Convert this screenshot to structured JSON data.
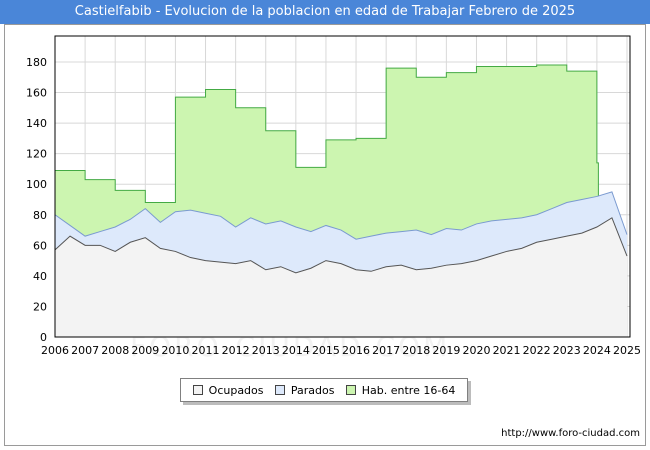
{
  "chart_data": {
    "type": "area",
    "title": "Castielfabib - Evolucion de la poblacion en edad de Trabajar Febrero de 2025",
    "xlabel": "",
    "ylabel": "",
    "x_ticks": [
      "2006",
      "2007",
      "2008",
      "2009",
      "2010",
      "2011",
      "2012",
      "2013",
      "2014",
      "2015",
      "2016",
      "2017",
      "2018",
      "2019",
      "2020",
      "2021",
      "2022",
      "2023",
      "2024",
      "2025"
    ],
    "y_ticks": [
      0,
      20,
      40,
      60,
      80,
      100,
      120,
      140,
      160,
      180
    ],
    "ylim": [
      0,
      197
    ],
    "xlim": [
      2006,
      2025.1
    ],
    "grid": true,
    "legend_position": "bottom",
    "series": [
      {
        "name": "Hab. entre 16-64",
        "color": "#ccf5b0",
        "line_color": "#44aa44",
        "x": [
          2006,
          2007,
          2008,
          2009,
          2010,
          2011,
          2012,
          2013,
          2014,
          2015,
          2016,
          2017,
          2018,
          2019,
          2020,
          2021,
          2022,
          2023,
          2024
        ],
        "values": [
          109,
          103,
          96,
          88,
          157,
          162,
          150,
          135,
          111,
          129,
          130,
          176,
          170,
          173,
          177,
          177,
          178,
          174,
          114
        ]
      },
      {
        "name": "Parados",
        "color": "#dde9fb",
        "line_color": "#7a9ad0",
        "x": [
          2006,
          2006.5,
          2007,
          2007.5,
          2008,
          2008.5,
          2009,
          2009.5,
          2010,
          2010.5,
          2011,
          2011.5,
          2012,
          2012.5,
          2013,
          2013.5,
          2014,
          2014.5,
          2015,
          2015.5,
          2016,
          2016.5,
          2017,
          2017.5,
          2018,
          2018.5,
          2019,
          2019.5,
          2020,
          2020.5,
          2021,
          2021.5,
          2022,
          2022.5,
          2023,
          2023.5,
          2024,
          2024.5,
          2025
        ],
        "values": [
          80,
          73,
          66,
          69,
          72,
          77,
          84,
          75,
          82,
          83,
          81,
          79,
          72,
          78,
          74,
          76,
          72,
          69,
          73,
          70,
          64,
          66,
          68,
          69,
          70,
          67,
          71,
          70,
          74,
          76,
          77,
          78,
          80,
          84,
          88,
          90,
          92,
          95,
          67
        ]
      },
      {
        "name": "Ocupados",
        "color": "#f3f3f3",
        "line_color": "#555555",
        "x": [
          2006,
          2006.5,
          2007,
          2007.5,
          2008,
          2008.5,
          2009,
          2009.5,
          2010,
          2010.5,
          2011,
          2011.5,
          2012,
          2012.5,
          2013,
          2013.5,
          2014,
          2014.5,
          2015,
          2015.5,
          2016,
          2016.5,
          2017,
          2017.5,
          2018,
          2018.5,
          2019,
          2019.5,
          2020,
          2020.5,
          2021,
          2021.5,
          2022,
          2022.5,
          2023,
          2023.5,
          2024,
          2024.5,
          2025
        ],
        "values": [
          57,
          66,
          60,
          60,
          56,
          62,
          65,
          58,
          56,
          52,
          50,
          49,
          48,
          50,
          44,
          46,
          42,
          45,
          50,
          48,
          44,
          43,
          46,
          47,
          44,
          45,
          47,
          48,
          50,
          53,
          56,
          58,
          62,
          64,
          66,
          68,
          72,
          78,
          53
        ]
      }
    ]
  },
  "legend": {
    "items": [
      {
        "label": "Ocupados"
      },
      {
        "label": "Parados"
      },
      {
        "label": "Hab. entre 16-64"
      }
    ]
  },
  "footer": {
    "source": "http://www.foro-ciudad.com"
  },
  "watermark": {
    "text": "FORO-CIUDAD.COM"
  }
}
